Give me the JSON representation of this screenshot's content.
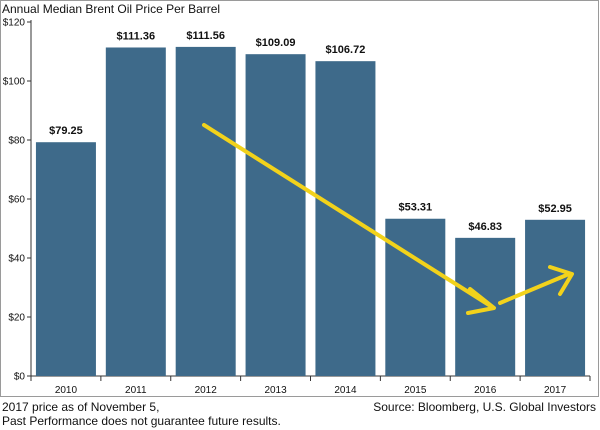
{
  "chart_data": {
    "type": "bar",
    "title": "Annual Median Brent Oil Price Per Barrel",
    "categories": [
      "2010",
      "2011",
      "2012",
      "2013",
      "2014",
      "2015",
      "2016",
      "2017"
    ],
    "values": [
      79.25,
      111.36,
      111.56,
      109.09,
      106.72,
      53.31,
      46.83,
      52.95
    ],
    "data_labels": [
      "$79.25",
      "$111.36",
      "$111.56",
      "$109.09",
      "$106.72",
      "$53.31",
      "$46.83",
      "$52.95"
    ],
    "yticks": [
      0,
      20,
      40,
      60,
      80,
      100,
      120
    ],
    "ytick_labels": [
      "$0",
      "$20",
      "$40",
      "$60",
      "$80",
      "$100",
      "$120"
    ],
    "ylim": [
      0,
      120
    ],
    "grid": false,
    "colors": {
      "bar": "#3e6a8a",
      "arrow": "#f2d21b",
      "axis": "#333333"
    }
  },
  "footnotes": {
    "left_line1": "2017 price as of November 5,",
    "left_line2": "Past Performance does not guarantee future results.",
    "source": "Source: Bloomberg, U.S. Global Investors"
  }
}
